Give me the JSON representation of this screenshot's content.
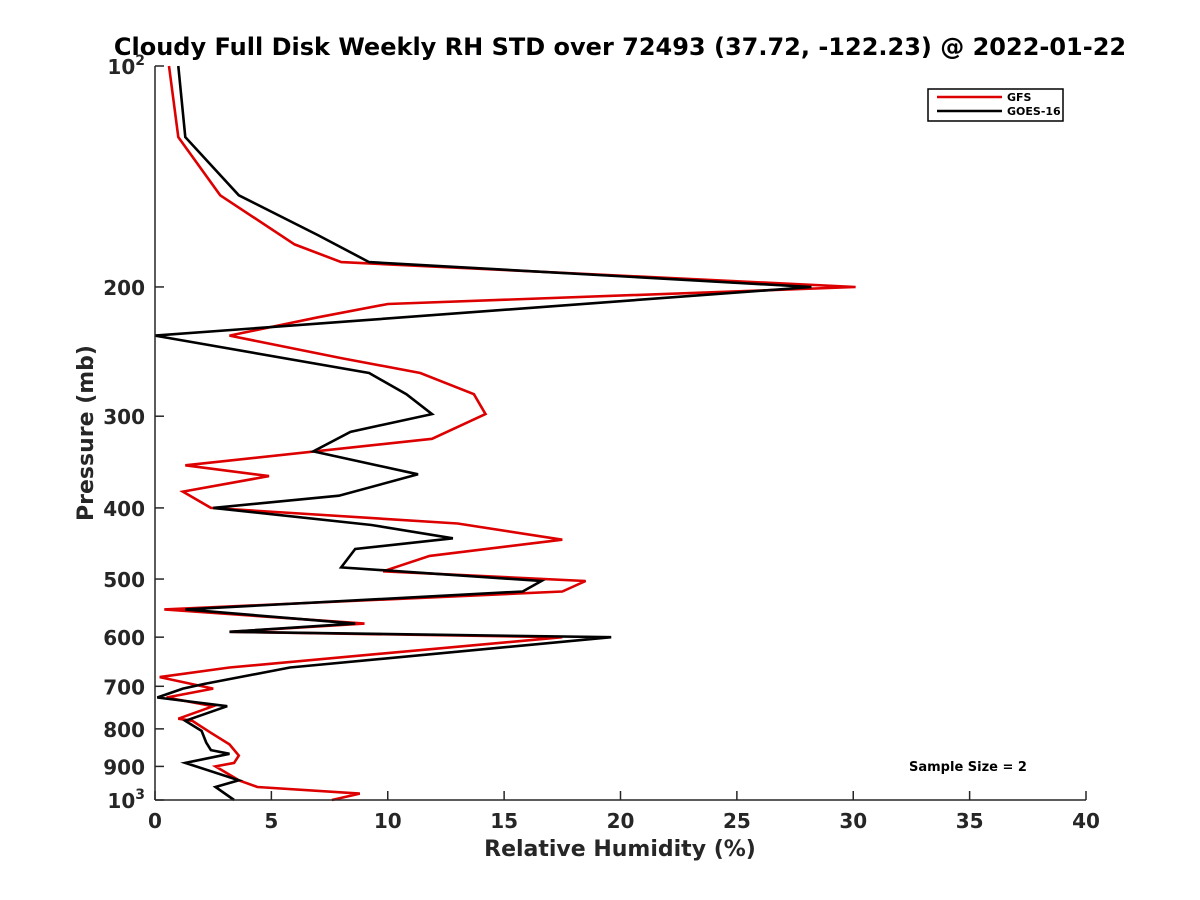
{
  "chart_data": {
    "type": "line",
    "title": "Cloudy Full Disk Weekly RH STD over 72493 (37.72, -122.23) @ 2022-01-22",
    "xlabel": "Relative Humidity (%)",
    "ylabel": "Pressure (mb)",
    "xlim": [
      0,
      40
    ],
    "ylim": [
      100,
      1000
    ],
    "yscale": "log",
    "y_reversed": true,
    "x_ticks": [
      0,
      5,
      10,
      15,
      20,
      25,
      30,
      35,
      40
    ],
    "y_ticks": [
      {
        "value": 100,
        "label": "10",
        "sup": "2"
      },
      {
        "value": 200,
        "label": "200",
        "sup": ""
      },
      {
        "value": 300,
        "label": "300",
        "sup": ""
      },
      {
        "value": 400,
        "label": "400",
        "sup": ""
      },
      {
        "value": 500,
        "label": "500",
        "sup": ""
      },
      {
        "value": 600,
        "label": "600",
        "sup": ""
      },
      {
        "value": 700,
        "label": "700",
        "sup": ""
      },
      {
        "value": 800,
        "label": "800",
        "sup": ""
      },
      {
        "value": 900,
        "label": "900",
        "sup": ""
      },
      {
        "value": 1000,
        "label": "10",
        "sup": "3"
      }
    ],
    "grid": false,
    "legend_position": "top-right",
    "annotation": "Sample Size = 2",
    "series": [
      {
        "name": "GFS",
        "color": "#dd0000",
        "points": [
          [
            0.6,
            100
          ],
          [
            1.0,
            125
          ],
          [
            2.8,
            150
          ],
          [
            6.0,
            175
          ],
          [
            8.0,
            185
          ],
          [
            30.1,
            200
          ],
          [
            10.0,
            211
          ],
          [
            7.0,
            220
          ],
          [
            3.2,
            233
          ],
          [
            8.0,
            250
          ],
          [
            11.4,
            262
          ],
          [
            13.7,
            280
          ],
          [
            14.2,
            298
          ],
          [
            11.9,
            322
          ],
          [
            1.3,
            350
          ],
          [
            4.9,
            362
          ],
          [
            1.2,
            380
          ],
          [
            2.4,
            400
          ],
          [
            13.0,
            420
          ],
          [
            17.5,
            442
          ],
          [
            11.8,
            465
          ],
          [
            9.8,
            488
          ],
          [
            18.5,
            503
          ],
          [
            17.5,
            520
          ],
          [
            0.4,
            550
          ],
          [
            9.0,
            575
          ],
          [
            3.2,
            590
          ],
          [
            17.5,
            600
          ],
          [
            3.2,
            660
          ],
          [
            0.2,
            680
          ],
          [
            2.5,
            705
          ],
          [
            0.5,
            725
          ],
          [
            2.5,
            745
          ],
          [
            1.0,
            775
          ],
          [
            1.6,
            780
          ],
          [
            2.4,
            810
          ],
          [
            3.2,
            840
          ],
          [
            3.6,
            870
          ],
          [
            3.4,
            890
          ],
          [
            2.6,
            900
          ],
          [
            3.6,
            940
          ],
          [
            4.4,
            960
          ],
          [
            8.8,
            980
          ],
          [
            7.6,
            1000
          ]
        ]
      },
      {
        "name": "GOES-16",
        "color": "#000000",
        "points": [
          [
            1.0,
            100
          ],
          [
            1.3,
            125
          ],
          [
            3.6,
            150
          ],
          [
            7.0,
            170
          ],
          [
            9.2,
            185
          ],
          [
            28.2,
            200
          ],
          [
            9.0,
            222
          ],
          [
            0.0,
            233
          ],
          [
            9.2,
            262
          ],
          [
            10.8,
            280
          ],
          [
            11.9,
            298
          ],
          [
            8.4,
            315
          ],
          [
            6.8,
            335
          ],
          [
            11.3,
            360
          ],
          [
            7.9,
            385
          ],
          [
            2.5,
            400
          ],
          [
            9.3,
            422
          ],
          [
            12.8,
            440
          ],
          [
            8.6,
            455
          ],
          [
            8.0,
            482
          ],
          [
            16.6,
            503
          ],
          [
            15.8,
            520
          ],
          [
            1.3,
            550
          ],
          [
            8.6,
            575
          ],
          [
            3.2,
            590
          ],
          [
            19.6,
            600
          ],
          [
            5.8,
            660
          ],
          [
            2.1,
            695
          ],
          [
            1.2,
            705
          ],
          [
            0.1,
            725
          ],
          [
            3.1,
            745
          ],
          [
            1.3,
            780
          ],
          [
            2.0,
            805
          ],
          [
            2.2,
            835
          ],
          [
            2.4,
            855
          ],
          [
            3.2,
            865
          ],
          [
            1.3,
            890
          ],
          [
            3.6,
            940
          ],
          [
            2.6,
            960
          ],
          [
            3.4,
            1000
          ]
        ]
      }
    ]
  }
}
